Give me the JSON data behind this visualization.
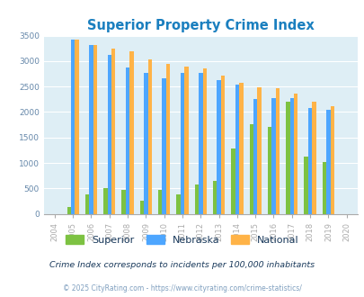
{
  "title": "Superior Property Crime Index",
  "years": [
    2004,
    2005,
    2006,
    2007,
    2008,
    2009,
    2010,
    2011,
    2012,
    2013,
    2014,
    2015,
    2016,
    2017,
    2018,
    2019,
    2020
  ],
  "superior": [
    0,
    130,
    385,
    505,
    470,
    250,
    470,
    385,
    570,
    650,
    1275,
    1760,
    1710,
    2210,
    1130,
    1010,
    0
  ],
  "nebraska": [
    0,
    3430,
    3310,
    3130,
    2870,
    2760,
    2660,
    2760,
    2760,
    2625,
    2535,
    2250,
    2280,
    2270,
    2075,
    2050,
    0
  ],
  "national": [
    0,
    3420,
    3310,
    3245,
    3195,
    3040,
    2945,
    2890,
    2860,
    2710,
    2580,
    2490,
    2470,
    2360,
    2210,
    2110,
    0
  ],
  "superior_color": "#7dc242",
  "nebraska_color": "#4da6ff",
  "national_color": "#ffb347",
  "title_color": "#1a7fbf",
  "legend_text_color": "#1a3a5c",
  "footnote1_color": "#1a3a5c",
  "footnote2_color": "#7f9fbf",
  "bg_color": "#deeef5",
  "ylim": [
    0,
    3500
  ],
  "yticks": [
    0,
    500,
    1000,
    1500,
    2000,
    2500,
    3000,
    3500
  ],
  "footnote1": "Crime Index corresponds to incidents per 100,000 inhabitants",
  "footnote2": "© 2025 CityRating.com - https://www.cityrating.com/crime-statistics/",
  "legend_labels": [
    "Superior",
    "Nebraska",
    "National"
  ]
}
